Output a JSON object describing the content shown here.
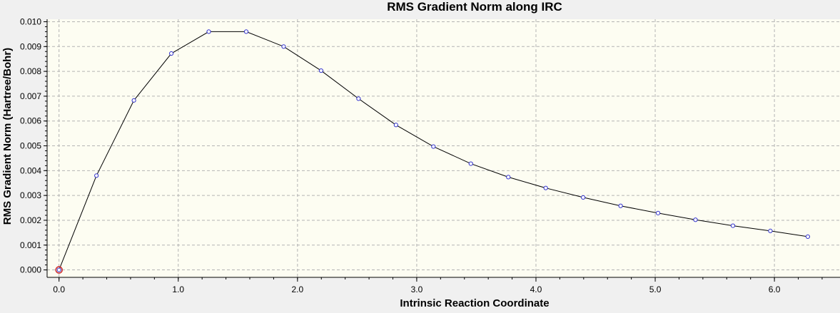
{
  "chart_data": {
    "type": "line",
    "title": "RMS Gradient Norm along IRC",
    "xlabel": "Intrinsic Reaction Coordinate",
    "ylabel": "RMS Gradient Norm (Hartree/Bohr)",
    "xlim": [
      -0.1,
      6.55
    ],
    "ylim": [
      -0.0003,
      0.0101
    ],
    "xticks": [
      "0.0",
      "1.0",
      "2.0",
      "3.0",
      "4.0",
      "5.0",
      "6.0"
    ],
    "yticks": [
      "0.000",
      "0.001",
      "0.002",
      "0.003",
      "0.004",
      "0.005",
      "0.006",
      "0.007",
      "0.008",
      "0.009",
      "0.010"
    ],
    "grid": true,
    "series": [
      {
        "x": [
          0.0,
          0.314,
          0.628,
          0.942,
          1.256,
          1.57,
          1.884,
          2.198,
          2.512,
          2.826,
          3.14,
          3.454,
          3.768,
          4.082,
          4.396,
          4.71,
          5.024,
          5.338,
          5.652,
          5.966,
          6.28
        ],
        "values": [
          0.0,
          0.0038,
          0.00683,
          0.00872,
          0.0096,
          0.0096,
          0.009,
          0.00803,
          0.0069,
          0.00584,
          0.00497,
          0.00428,
          0.00374,
          0.0033,
          0.00292,
          0.00258,
          0.00229,
          0.00202,
          0.00178,
          0.00157,
          0.00134
        ]
      }
    ],
    "colors": {
      "line": "#000000",
      "marker": "#3333cc",
      "highlight": "#cc2222",
      "plot_bg": "#fdfdf2",
      "grid": "#b4b4b4"
    }
  }
}
